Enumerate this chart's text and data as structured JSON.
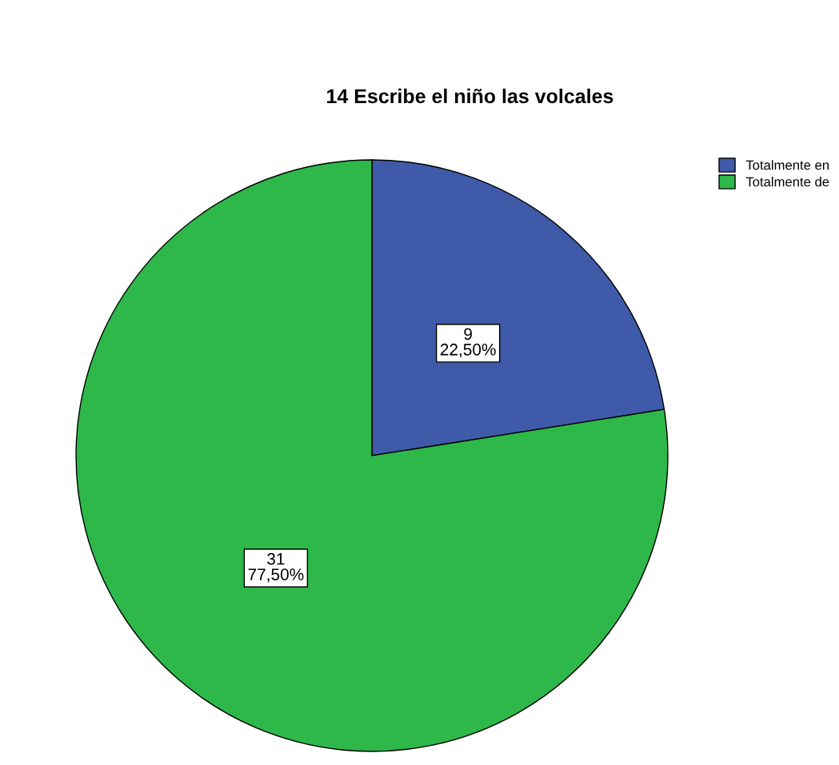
{
  "chart_data": {
    "type": "pie",
    "title": "14 Escribe el niño las volcales",
    "categories": [
      "Totalmente en",
      "Totalmente de"
    ],
    "values": [
      9,
      31
    ],
    "colors": [
      "#3f5aa8",
      "#2eb84a"
    ],
    "value_labels": [
      "9\n22,50%",
      "31\n77,50%"
    ],
    "legend": "top right"
  }
}
